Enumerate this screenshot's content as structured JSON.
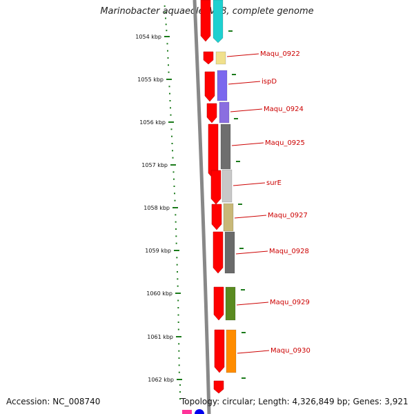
{
  "title": "Marinobacter aquaeolei VT8, complete genome",
  "footer": {
    "accession": "Accession: NC_008740",
    "topology": "Topology: circular; Length: 4,326,849 bp; Genes: 3,921"
  },
  "scale_labels": [
    "1054 kbp",
    "1055 kbp",
    "1056 kbp",
    "1057 kbp",
    "1058 kbp",
    "1059 kbp",
    "1060 kbp",
    "1061 kbp",
    "1062 kbp"
  ],
  "genes": [
    {
      "label": "",
      "color": "#1ed0d0",
      "strand": "reverse"
    },
    {
      "label": "Maqu_0922",
      "color": "#f0e08c",
      "strand": "forward"
    },
    {
      "label": "ispD",
      "color": "#7b68ee",
      "strand": "forward"
    },
    {
      "label": "Maqu_0924",
      "color": "#8a6ee0",
      "strand": "forward"
    },
    {
      "label": "Maqu_0925",
      "color": "#6e6e6e",
      "strand": "forward"
    },
    {
      "label": "surE",
      "color": "#c8c8c8",
      "strand": "forward"
    },
    {
      "label": "Maqu_0927",
      "color": "#c8b878",
      "strand": "forward"
    },
    {
      "label": "Maqu_0928",
      "color": "#6a6a6a",
      "strand": "forward"
    },
    {
      "label": "Maqu_0929",
      "color": "#5a8a20",
      "strand": "forward"
    },
    {
      "label": "Maqu_0930",
      "color": "#ff8c00",
      "strand": "forward"
    }
  ],
  "colors": {
    "strand_arrow": "#ff0000",
    "backbone": "#888888",
    "tick": "#1a7a1a",
    "label_line": "#cc0000"
  }
}
